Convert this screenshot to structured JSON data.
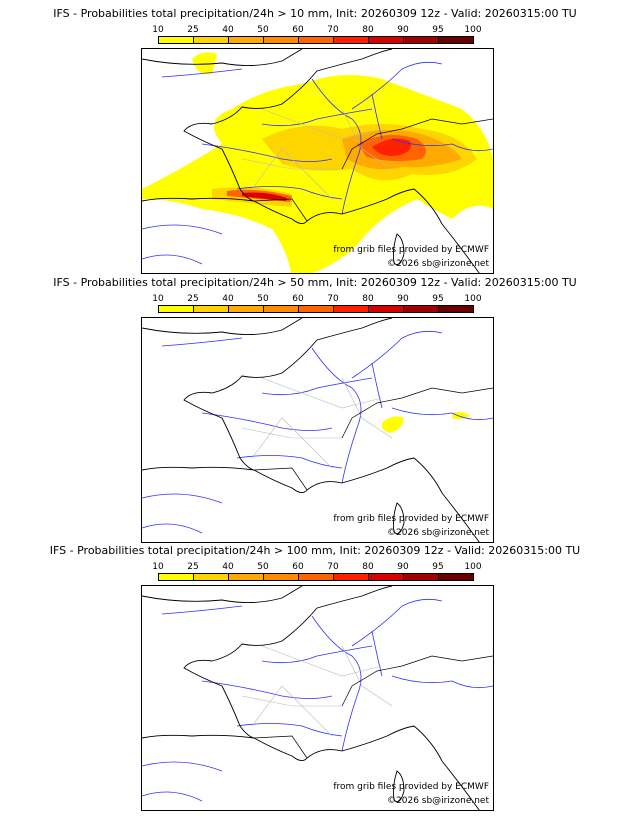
{
  "colorbar": {
    "ticks": [
      "10",
      "25",
      "40",
      "50",
      "60",
      "70",
      "80",
      "90",
      "95",
      "100"
    ],
    "colors": [
      "#ffff00",
      "#ffd500",
      "#ffaa00",
      "#ff8c00",
      "#ff6400",
      "#ff2000",
      "#d90000",
      "#a00000",
      "#680000"
    ]
  },
  "panels": [
    {
      "title": "IFS - Probabilities total precipitation/24h > 10 mm, Init: 20260309 12z - Valid: 20260315:00 TU"
    },
    {
      "title": "IFS - Probabilities total precipitation/24h > 50 mm, Init: 20260309 12z - Valid: 20260315:00 TU"
    },
    {
      "title": "IFS - Probabilities total precipitation/24h > 100 mm, Init: 20260309 12z - Valid: 20260315:00 TU"
    }
  ],
  "credits": {
    "source": "from grib files provided by ECMWF",
    "copyright": "©2026 sb@irizone.net"
  }
}
